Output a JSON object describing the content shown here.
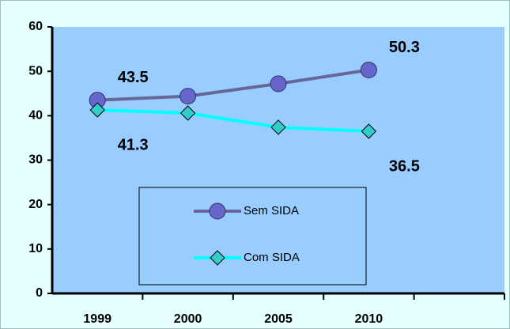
{
  "chart_data": {
    "type": "line",
    "categories": [
      "1999",
      "2000",
      "2005",
      "2010",
      null
    ],
    "series": [
      {
        "name": "Sem SIDA",
        "color": "#666699",
        "marker": "circle",
        "marker_color": "#6666cc",
        "values": [
          43.5,
          44.4,
          47.2,
          50.3,
          null
        ],
        "value_labels": [
          "43.5",
          null,
          null,
          "50.3",
          null
        ]
      },
      {
        "name": "Com SIDA",
        "color": "#00ffff",
        "marker": "diamond",
        "marker_color": "#33cccc",
        "values": [
          41.3,
          40.6,
          37.4,
          36.5,
          null
        ],
        "value_labels": [
          "41.3",
          null,
          null,
          "36.5",
          null
        ]
      }
    ],
    "ylim": [
      0,
      60
    ],
    "yticks": [
      0,
      10,
      20,
      30,
      40,
      50,
      60
    ],
    "grid": false,
    "legend": "lower center"
  }
}
